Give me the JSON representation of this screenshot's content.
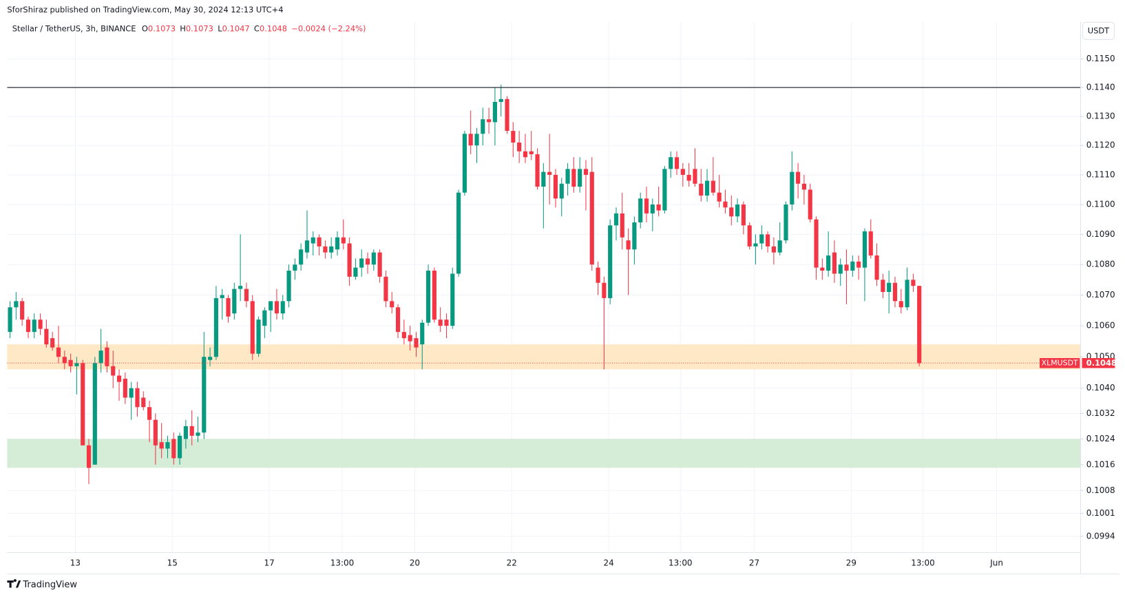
{
  "header": {
    "published": "SforShiraz published on TradingView.com, May 30, 2024 12:13 UTC+4"
  },
  "chart_data": {
    "type": "candlestick",
    "title": "Stellar / TetherUS, 3h, BINANCE",
    "ohlc_labels": [
      "O",
      "H",
      "L",
      "C"
    ],
    "change_label": "−0.0024 (−2.24%)",
    "currency": "USDT",
    "log_scale": true,
    "grid": true,
    "ylim": [
      0.09891,
      0.11632
    ],
    "yticks": [
      {
        "value": 0.115,
        "label": "0.1150"
      },
      {
        "value": 0.114,
        "label": "0.1140"
      },
      {
        "value": 0.113,
        "label": "0.1130"
      },
      {
        "value": 0.112,
        "label": "0.1120"
      },
      {
        "value": 0.111,
        "label": "0.1110"
      },
      {
        "value": 0.11,
        "label": "0.1100"
      },
      {
        "value": 0.109,
        "label": "0.1090"
      },
      {
        "value": 0.108,
        "label": "0.1080"
      },
      {
        "value": 0.107,
        "label": "0.1070"
      },
      {
        "value": 0.106,
        "label": "0.1060"
      },
      {
        "value": 0.105,
        "label": "0.1050"
      },
      {
        "value": 0.104,
        "label": "0.1040"
      },
      {
        "value": 0.1032,
        "label": "0.1032"
      },
      {
        "value": 0.1024,
        "label": "0.1024"
      },
      {
        "value": 0.1016,
        "label": "0.1016"
      },
      {
        "value": 0.1008,
        "label": "0.1008"
      },
      {
        "value": 0.1001,
        "label": "0.1001"
      },
      {
        "value": 0.0994,
        "label": "0.0994"
      }
    ],
    "xlim": [
      -0.47,
      176.6
    ],
    "xticks": [
      {
        "value": 10.77,
        "label": "13"
      },
      {
        "value": 26.77,
        "label": "15"
      },
      {
        "value": 42.77,
        "label": "17"
      },
      {
        "value": 54.8,
        "label": "13:00"
      },
      {
        "value": 66.77,
        "label": "20"
      },
      {
        "value": 82.77,
        "label": "22"
      },
      {
        "value": 98.77,
        "label": "24"
      },
      {
        "value": 110.6,
        "label": "13:00"
      },
      {
        "value": 122.77,
        "label": "27"
      },
      {
        "value": 138.77,
        "label": "29"
      },
      {
        "value": 150.6,
        "label": "13:00"
      },
      {
        "value": 162.77,
        "label": "Jun"
      }
    ],
    "zones": [
      {
        "from": 0.1046,
        "to": 0.1054,
        "color": "#ffe8c6"
      },
      {
        "from": 0.1015,
        "to": 0.1024,
        "color": "#d5ecd6"
      }
    ],
    "hline": {
      "value": 0.114,
      "color": "#131722"
    },
    "series": [
      {
        "name": "XLMUSDT",
        "up_color": "#089981",
        "down_color": "#f23645",
        "open": [
          0.1058,
          0.1066,
          0.1068,
          0.1062,
          0.1058,
          0.1062,
          0.1059,
          0.1056,
          0.1053,
          0.105,
          0.1049,
          0.1047,
          0.1048,
          0.1022,
          0.1016,
          0.1048,
          0.1053,
          0.1047,
          0.1044,
          0.1043,
          0.1037,
          0.104,
          0.1037,
          0.1034,
          0.103,
          0.1023,
          0.1021,
          0.1024,
          0.1018,
          0.1024,
          0.1028,
          0.1025,
          0.1026,
          0.1049,
          0.105,
          0.1069,
          0.1069,
          0.1064,
          0.1072,
          0.1072,
          0.1068,
          0.1051,
          0.106,
          0.1065,
          0.1068,
          0.1064,
          0.1068,
          0.1078,
          0.108,
          0.1084,
          0.1087,
          0.1089,
          0.1086,
          0.1084,
          0.1085,
          0.1089,
          0.1087,
          0.1076,
          0.1079,
          0.1082,
          0.108,
          0.1084,
          0.1076,
          0.1068,
          0.1066,
          0.1058,
          0.1057,
          0.1056,
          0.1054,
          0.1061,
          0.1078,
          0.1062,
          0.1062,
          0.106,
          0.1077,
          0.1104,
          0.1124,
          0.112,
          0.1124,
          0.1129,
          0.1128,
          0.1135,
          0.1136,
          0.1125,
          0.1121,
          0.1118,
          0.1118,
          0.1117,
          0.1106,
          0.1111,
          0.111,
          0.1102,
          0.1107,
          0.1112,
          0.1106,
          0.1112,
          0.1111,
          0.1079,
          0.1074,
          0.1069,
          0.1093,
          0.1097,
          0.1088,
          0.1085,
          0.1094,
          0.1102,
          0.1097,
          0.11,
          0.1098,
          0.1112,
          0.1116,
          0.1112,
          0.111,
          0.1112,
          0.1107,
          0.1103,
          0.1108,
          0.1104,
          0.1101,
          0.1099,
          0.1096,
          0.11,
          0.1093,
          0.1086,
          0.1087,
          0.109,
          0.1086,
          0.1084,
          0.1088,
          0.11,
          0.1111,
          0.1107,
          0.1105,
          0.1095,
          0.1079,
          0.1078,
          0.1084,
          0.1077,
          0.108,
          0.1078,
          0.1081,
          0.1079,
          0.1091,
          0.1083,
          0.1075,
          0.1071,
          0.1074,
          0.1068,
          0.1066,
          0.1075,
          0.1073
        ],
        "high": [
          0.1068,
          0.1071,
          0.1069,
          0.1063,
          0.1064,
          0.1064,
          0.1062,
          0.1058,
          0.106,
          0.1052,
          0.1051,
          0.105,
          0.1049,
          0.1024,
          0.105,
          0.1059,
          0.1055,
          0.1052,
          0.1046,
          0.1045,
          0.1042,
          0.1042,
          0.1039,
          0.1036,
          0.1032,
          0.1029,
          0.1025,
          0.1026,
          0.1026,
          0.103,
          0.1033,
          0.1031,
          0.1058,
          0.1053,
          0.1073,
          0.1072,
          0.107,
          0.1074,
          0.109,
          0.1074,
          0.107,
          0.1063,
          0.1066,
          0.1068,
          0.1072,
          0.107,
          0.108,
          0.1082,
          0.1087,
          0.1098,
          0.1091,
          0.109,
          0.1088,
          0.1089,
          0.1091,
          0.1095,
          0.1089,
          0.1082,
          0.1085,
          0.1084,
          0.1085,
          0.1085,
          0.1078,
          0.1071,
          0.1067,
          0.1062,
          0.106,
          0.1058,
          0.1062,
          0.108,
          0.1079,
          0.1066,
          0.1064,
          0.1079,
          0.1105,
          0.1125,
          0.1132,
          0.1126,
          0.1133,
          0.1133,
          0.114,
          0.1141,
          0.1137,
          0.1128,
          0.1125,
          0.1124,
          0.1125,
          0.1119,
          0.1114,
          0.1124,
          0.1112,
          0.1109,
          0.1114,
          0.1116,
          0.1116,
          0.1115,
          0.1116,
          0.1081,
          0.1076,
          0.1095,
          0.1099,
          0.1104,
          0.1092,
          0.1096,
          0.1104,
          0.1106,
          0.1102,
          0.1106,
          0.1113,
          0.1118,
          0.1118,
          0.1114,
          0.1114,
          0.1119,
          0.1112,
          0.1112,
          0.1116,
          0.111,
          0.1105,
          0.1103,
          0.1102,
          0.1101,
          0.1094,
          0.109,
          0.1093,
          0.1091,
          0.1089,
          0.1094,
          0.1101,
          0.1118,
          0.1114,
          0.111,
          0.1107,
          0.1096,
          0.1082,
          0.1091,
          0.1088,
          0.1082,
          0.1085,
          0.1083,
          0.1083,
          0.1092,
          0.1095,
          0.1087,
          0.1077,
          0.1078,
          0.1076,
          0.1072,
          0.1079,
          0.1077,
          0.1073
        ],
        "low": [
          0.1056,
          0.1062,
          0.106,
          0.1056,
          0.1056,
          0.1057,
          0.1053,
          0.1052,
          0.1048,
          0.1046,
          0.1045,
          0.1038,
          0.1022,
          0.101,
          0.1016,
          0.1045,
          0.1045,
          0.104,
          0.1036,
          0.1035,
          0.103,
          0.1031,
          0.1033,
          0.1023,
          0.1016,
          0.1018,
          0.1018,
          0.1016,
          0.1016,
          0.1021,
          0.1022,
          0.1023,
          0.1024,
          0.1047,
          0.1049,
          0.1062,
          0.1061,
          0.1062,
          0.1068,
          0.1066,
          0.1049,
          0.105,
          0.1056,
          0.1058,
          0.1062,
          0.1062,
          0.1066,
          0.1075,
          0.1078,
          0.1082,
          0.1083,
          0.1083,
          0.1082,
          0.1082,
          0.1083,
          0.1085,
          0.1073,
          0.1075,
          0.1076,
          0.1077,
          0.1078,
          0.1074,
          0.1066,
          0.1064,
          0.1056,
          0.1054,
          0.1052,
          0.105,
          0.1046,
          0.106,
          0.1061,
          0.1058,
          0.1056,
          0.1059,
          0.1076,
          0.1103,
          0.1117,
          0.1114,
          0.112,
          0.1124,
          0.112,
          0.113,
          0.1124,
          0.1116,
          0.1114,
          0.1114,
          0.1115,
          0.1105,
          0.1092,
          0.11,
          0.1099,
          0.1096,
          0.1103,
          0.1104,
          0.1104,
          0.1098,
          0.1078,
          0.107,
          0.1046,
          0.1067,
          0.1088,
          0.1085,
          0.107,
          0.108,
          0.1092,
          0.1094,
          0.1091,
          0.1096,
          0.1097,
          0.1109,
          0.111,
          0.1106,
          0.1106,
          0.1106,
          0.1101,
          0.1101,
          0.1103,
          0.1099,
          0.1097,
          0.1093,
          0.1094,
          0.109,
          0.1085,
          0.108,
          0.1085,
          0.1084,
          0.108,
          0.1083,
          0.1087,
          0.1098,
          0.1102,
          0.11,
          0.1094,
          0.1075,
          0.1075,
          0.1076,
          0.1074,
          0.1073,
          0.1067,
          0.1076,
          0.1075,
          0.1068,
          0.1082,
          0.1073,
          0.1069,
          0.1064,
          0.1066,
          0.1064,
          0.1065,
          0.1071,
          0.1047
        ],
        "close": [
          0.1066,
          0.1068,
          0.1062,
          0.1058,
          0.1062,
          0.1059,
          0.1054,
          0.1053,
          0.105,
          0.1048,
          0.1047,
          0.1048,
          0.1022,
          0.1015,
          0.1048,
          0.1052,
          0.1047,
          0.1044,
          0.1042,
          0.1037,
          0.104,
          0.1034,
          0.1034,
          0.103,
          0.1022,
          0.1021,
          0.1023,
          0.1018,
          0.1025,
          0.1028,
          0.1025,
          0.1026,
          0.105,
          0.105,
          0.1069,
          0.107,
          0.1063,
          0.1072,
          0.1073,
          0.1068,
          0.1051,
          0.1062,
          0.1065,
          0.1068,
          0.1064,
          0.1068,
          0.1078,
          0.108,
          0.1085,
          0.1088,
          0.1089,
          0.1086,
          0.1084,
          0.1086,
          0.1089,
          0.1087,
          0.1076,
          0.1079,
          0.1082,
          0.108,
          0.1084,
          0.1076,
          0.1068,
          0.1066,
          0.1058,
          0.1056,
          0.1055,
          0.1053,
          0.1061,
          0.1078,
          0.1062,
          0.106,
          0.106,
          0.1077,
          0.1104,
          0.1124,
          0.112,
          0.1124,
          0.1129,
          0.1128,
          0.1135,
          0.1136,
          0.1125,
          0.1121,
          0.1118,
          0.1116,
          0.1117,
          0.1106,
          0.1111,
          0.111,
          0.1102,
          0.1107,
          0.1112,
          0.1106,
          0.1112,
          0.111,
          0.108,
          0.1074,
          0.1069,
          0.1093,
          0.1097,
          0.1089,
          0.1085,
          0.1094,
          0.1102,
          0.1097,
          0.11,
          0.1098,
          0.1112,
          0.1116,
          0.1112,
          0.111,
          0.1108,
          0.1107,
          0.1103,
          0.1108,
          0.1104,
          0.1101,
          0.1099,
          0.1096,
          0.11,
          0.1093,
          0.1086,
          0.1087,
          0.109,
          0.1086,
          0.1084,
          0.1088,
          0.11,
          0.1111,
          0.1107,
          0.1105,
          0.1095,
          0.1079,
          0.1078,
          0.1083,
          0.1077,
          0.108,
          0.1078,
          0.1081,
          0.1079,
          0.1091,
          0.1083,
          0.1075,
          0.1071,
          0.1074,
          0.1068,
          0.1066,
          0.1075,
          0.1073,
          0.1048
        ]
      }
    ]
  },
  "footer": {
    "brand": "TradingView"
  }
}
